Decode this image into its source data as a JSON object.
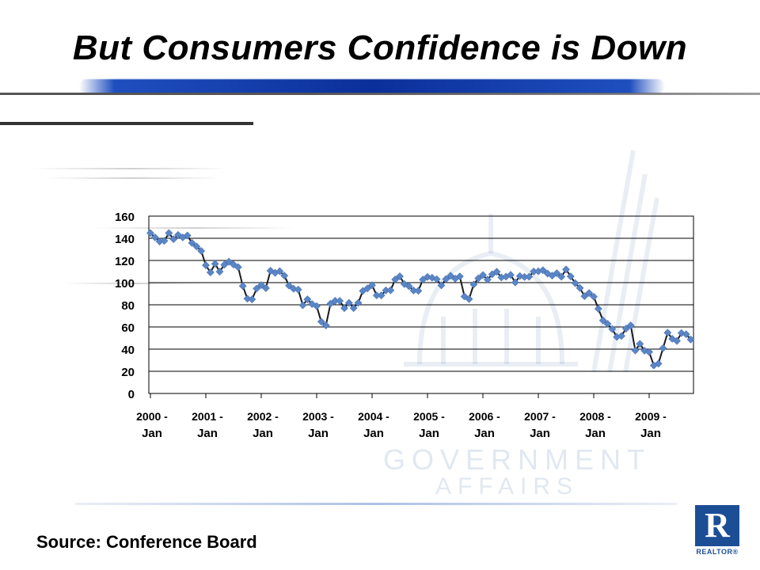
{
  "slide": {
    "title": "But Consumers Confidence is Down",
    "source": "Source: Conference Board",
    "watermark_line1": "GOVERNMENT",
    "watermark_line2": "AFFAIRS",
    "logo_letter": "R",
    "logo_text": "REALTOR®"
  },
  "colors": {
    "series": "#5b86c6",
    "line": "#1a1a1a",
    "grid": "#000000",
    "logo": "#1c4e96"
  },
  "chart_data": {
    "type": "line",
    "title": "",
    "xlabel": "",
    "ylabel": "",
    "ylim": [
      0,
      160
    ],
    "yticks": [
      0,
      20,
      40,
      60,
      80,
      100,
      120,
      140,
      160
    ],
    "grid": true,
    "legend": "none",
    "x_labels": [
      {
        "top": "2000 -",
        "bottom": "Jan"
      },
      {
        "top": "2001 -",
        "bottom": "Jan"
      },
      {
        "top": "2002 -",
        "bottom": "Jan"
      },
      {
        "top": "2003 -",
        "bottom": "Jan"
      },
      {
        "top": "2004 -",
        "bottom": "Jan"
      },
      {
        "top": "2005 -",
        "bottom": "Jan"
      },
      {
        "top": "2006 -",
        "bottom": "Jan"
      },
      {
        "top": "2007 -",
        "bottom": "Jan"
      },
      {
        "top": "2008 -",
        "bottom": "Jan"
      },
      {
        "top": "2009 -",
        "bottom": "Jan"
      }
    ],
    "start": "2000-01",
    "frequency": "monthly",
    "series": [
      {
        "values": [
          144.7,
          140.8,
          137.1,
          137.7,
          144.7,
          139.2,
          143.0,
          140.8,
          142.5,
          135.8,
          132.6,
          128.6,
          115.7,
          109.2,
          117.0,
          109.9,
          116.1,
          118.9,
          116.3,
          114.0,
          97.0,
          85.5,
          84.9,
          94.6,
          97.8,
          95.0,
          110.7,
          108.8,
          110.3,
          106.3,
          97.4,
          94.5,
          93.7,
          79.6,
          84.9,
          80.7,
          78.8,
          64.8,
          61.4,
          81.0,
          83.6,
          83.5,
          77.0,
          81.7,
          77.0,
          81.7,
          92.5,
          94.8,
          97.7,
          88.5,
          88.5,
          93.0,
          93.1,
          102.8,
          105.7,
          98.7,
          96.7,
          92.9,
          92.6,
          102.7,
          105.1,
          104.4,
          103.0,
          97.5,
          103.1,
          106.2,
          103.6,
          105.6,
          87.5,
          85.2,
          98.3,
          103.8,
          106.8,
          102.7,
          107.5,
          109.8,
          104.7,
          105.4,
          107.0,
          100.2,
          105.9,
          105.1,
          105.3,
          110.0,
          110.2,
          111.2,
          108.2,
          106.3,
          108.5,
          105.3,
          111.9,
          105.6,
          99.5,
          95.2,
          87.8,
          90.6,
          87.3,
          76.4,
          65.9,
          62.8,
          58.1,
          51.0,
          51.9,
          58.5,
          61.4,
          38.8,
          44.7,
          38.6,
          37.4,
          25.3,
          26.9,
          40.8,
          54.8,
          49.3,
          47.4,
          54.5,
          53.4,
          48.7
        ]
      }
    ]
  }
}
